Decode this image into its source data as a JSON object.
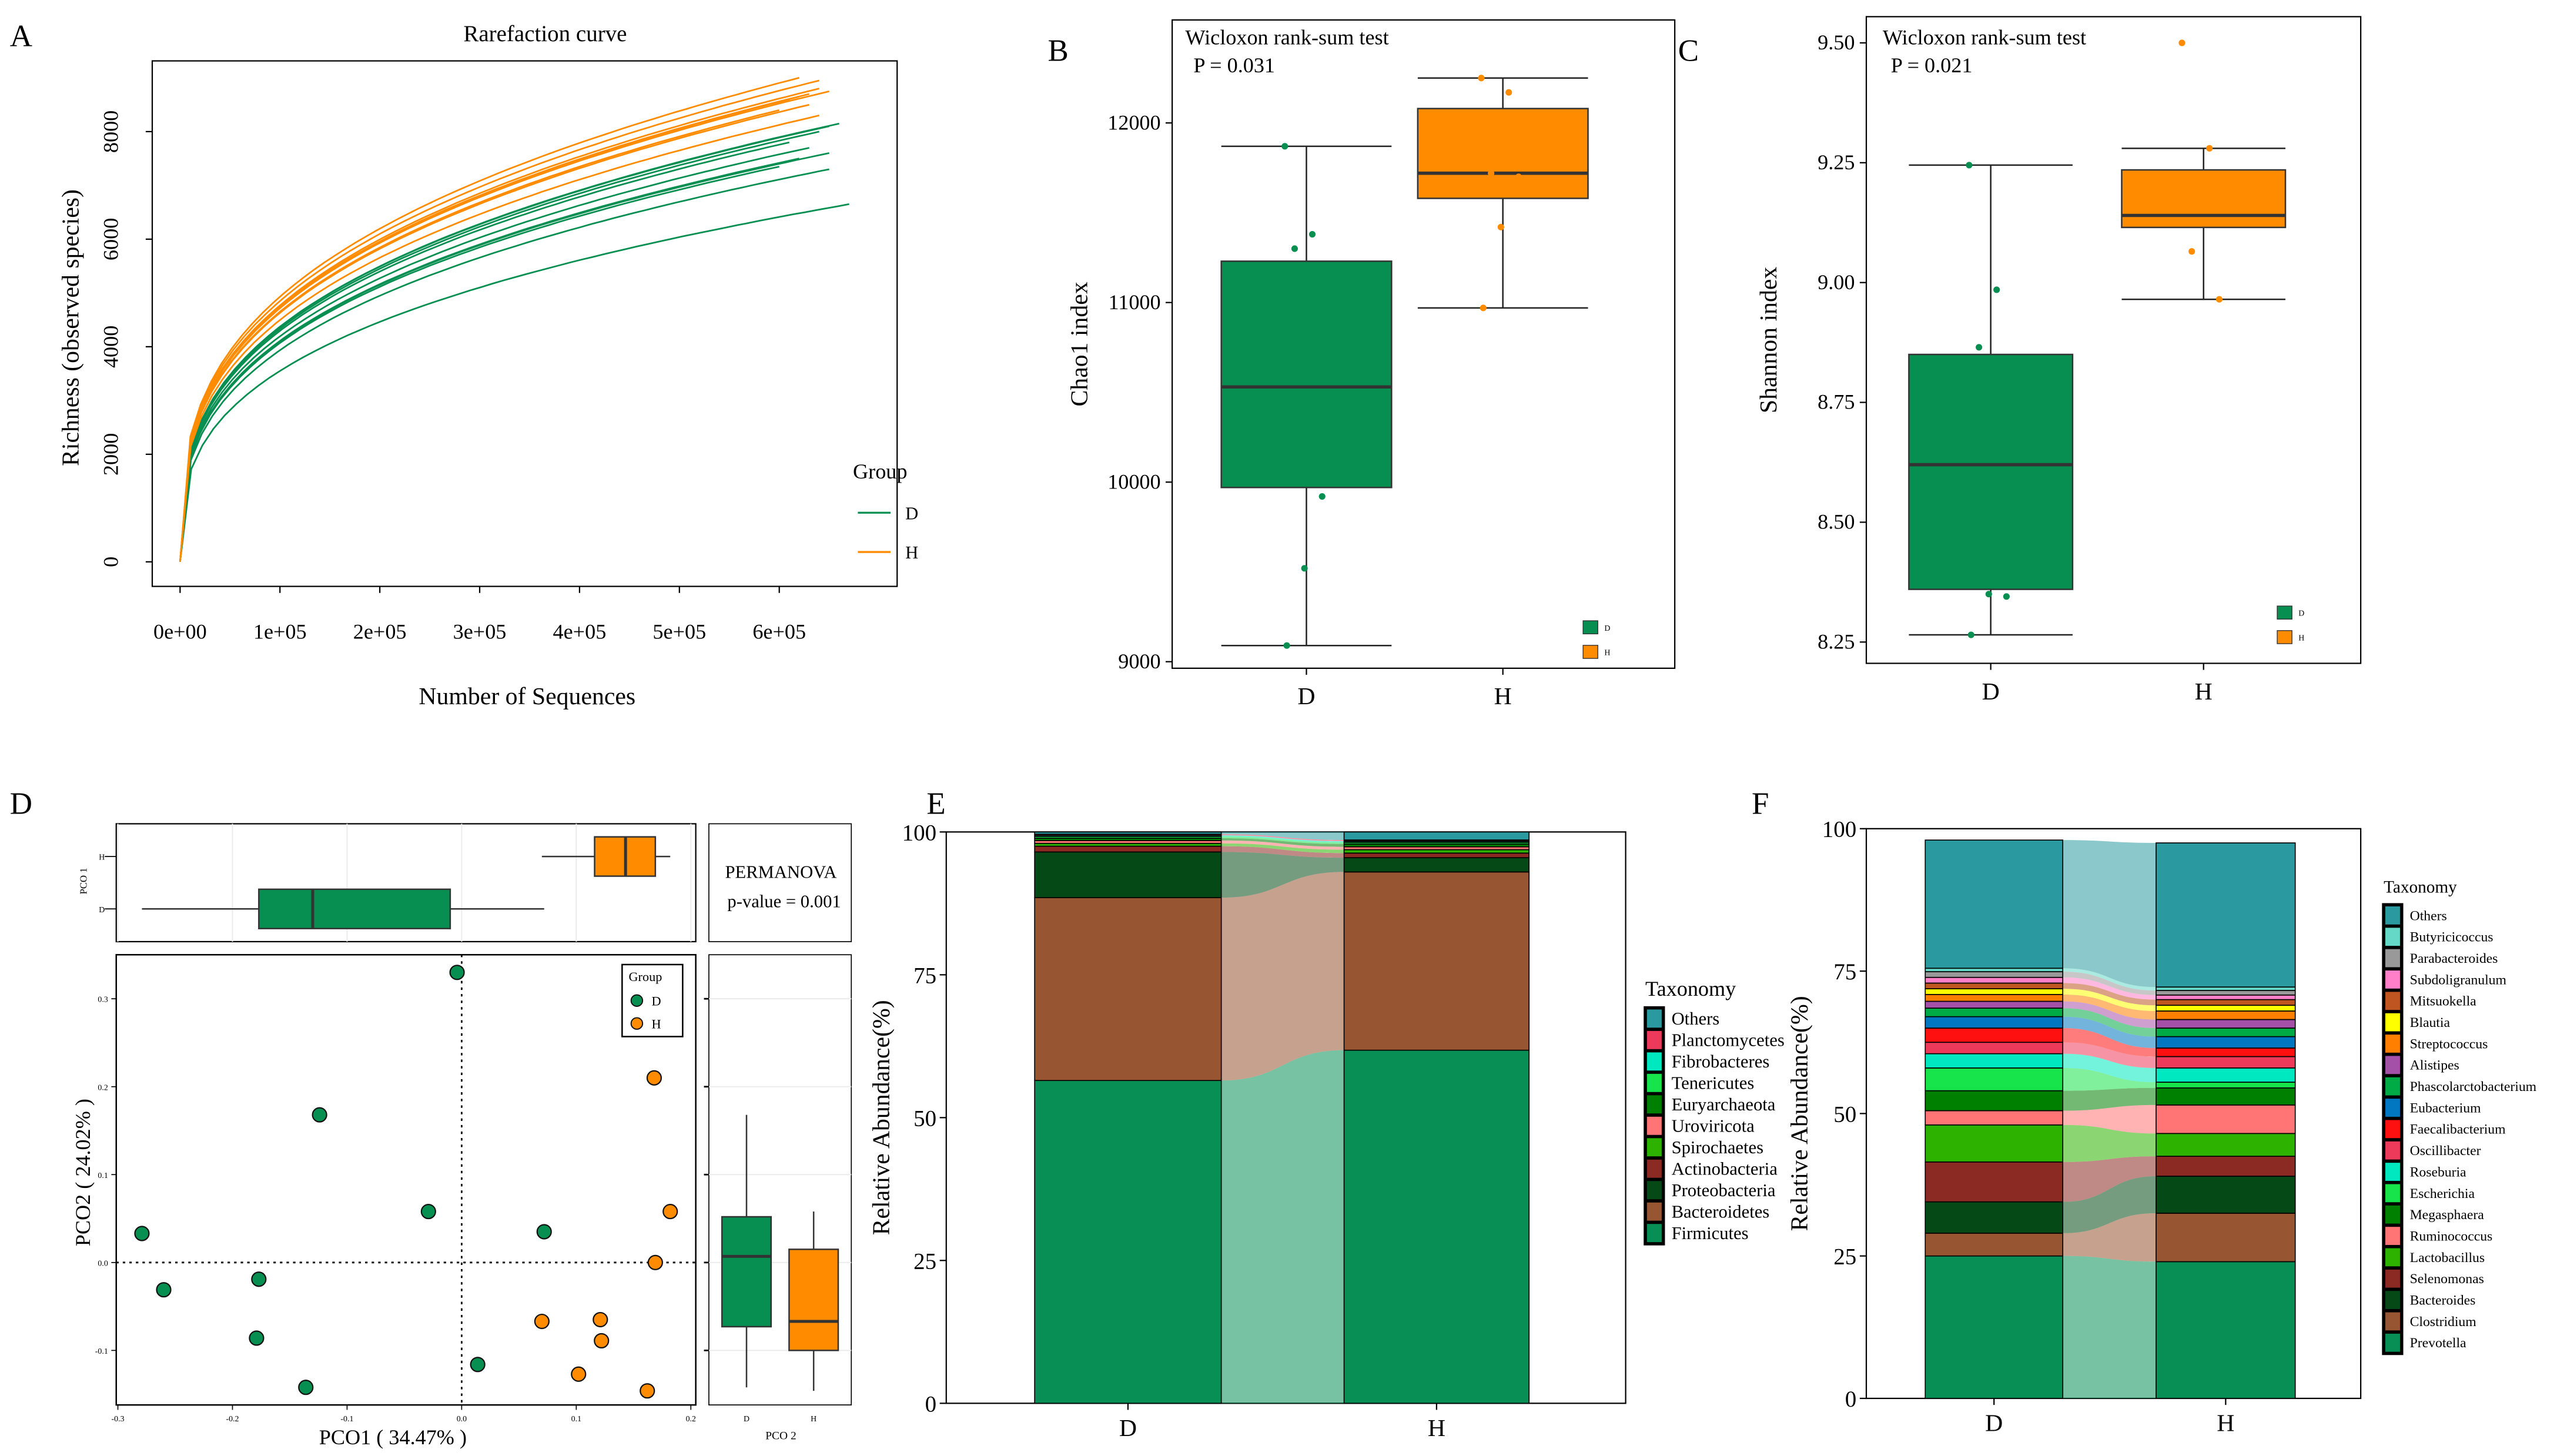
{
  "panel_labels": {
    "A": "A",
    "B": "B",
    "C": "C",
    "D": "D",
    "E": "E",
    "F": "F"
  },
  "colors": {
    "D": "#078F52",
    "H": "#FF8C00"
  },
  "chart_data": [
    {
      "id": "A",
      "type": "line",
      "title": "Rarefaction curve",
      "xlabel": "Number of Sequences",
      "ylabel": "Richness  (observed species)",
      "xticks": [
        0,
        100000,
        200000,
        300000,
        400000,
        500000,
        600000
      ],
      "xtick_labels": [
        "0e+00",
        "1e+05",
        "2e+05",
        "3e+05",
        "4e+05",
        "5e+05",
        "6e+05"
      ],
      "yticks": [
        0,
        2000,
        4000,
        6000,
        8000
      ],
      "yticks_text": [
        "0",
        "2000",
        "4000",
        "6000",
        "8000"
      ],
      "legend_title": "Group",
      "legend_placement": "right",
      "series": [
        {
          "name": "D",
          "endpoints": [
            [
              670000,
              6650
            ],
            [
              650000,
              7300
            ],
            [
              650000,
              7600
            ],
            [
              630000,
              7700
            ],
            [
              660000,
              8150
            ],
            [
              650000,
              8100
            ],
            [
              620000,
              7500
            ],
            [
              600000,
              7350
            ],
            [
              640000,
              8000
            ],
            [
              610000,
              7800
            ]
          ]
        },
        {
          "name": "H",
          "endpoints": [
            [
              640000,
              8950
            ],
            [
              620000,
              9000
            ],
            [
              640000,
              8800
            ],
            [
              630000,
              8700
            ],
            [
              650000,
              8750
            ],
            [
              610000,
              8600
            ],
            [
              630000,
              8500
            ],
            [
              600000,
              8400
            ],
            [
              640000,
              8300
            ],
            [
              620000,
              8650
            ]
          ]
        }
      ]
    },
    {
      "id": "B",
      "type": "box",
      "ylabel": "Chao1 index",
      "categories": [
        "D",
        "H"
      ],
      "test": "Wicloxon rank-sum test",
      "pvalue": "P  = 0.031",
      "yticks": [
        9000,
        10000,
        11000,
        12000
      ],
      "yticks_text": [
        "9000",
        "10000",
        "11000",
        "12000"
      ],
      "ylim": [
        8920,
        12550
      ],
      "boxes": [
        {
          "name": "D",
          "min": 9090,
          "q1": 9970,
          "median": 10530,
          "q3": 11230,
          "max": 11870,
          "points": [
            11870,
            11380,
            11300,
            9920,
            9520,
            9090
          ]
        },
        {
          "name": "H",
          "min": 10970,
          "q1": 11580,
          "median": 11720,
          "q3": 12080,
          "max": 12250,
          "points": [
            12250,
            12170,
            11720,
            11700,
            11420,
            10970
          ]
        }
      ],
      "legend": [
        "D",
        "H"
      ]
    },
    {
      "id": "C",
      "type": "box",
      "ylabel": "Shannon index",
      "categories": [
        "D",
        "H"
      ],
      "test": "Wicloxon rank-sum test",
      "pvalue": "P  = 0.021",
      "yticks": [
        8.25,
        8.5,
        8.75,
        9.0,
        9.25,
        9.5
      ],
      "yticks_text": [
        "8.25",
        "8.50",
        "8.75",
        "9.00",
        "9.25",
        "9.50"
      ],
      "boxes": [
        {
          "name": "D",
          "min": 8.265,
          "q1": 8.36,
          "median": 8.62,
          "q3": 8.85,
          "max": 9.245,
          "points": [
            9.245,
            8.985,
            8.865,
            8.345,
            8.35,
            8.265
          ]
        },
        {
          "name": "H",
          "min": 8.965,
          "q1": 9.115,
          "median": 9.14,
          "q3": 9.235,
          "max": 9.28,
          "points": [
            9.5,
            9.28,
            9.065,
            8.965
          ]
        }
      ],
      "legend": [
        "D",
        "H"
      ]
    },
    {
      "id": "D",
      "type": "scatter",
      "xlabel": "PCO1 ( 34.47% )",
      "ylabel": "PCO2 ( 24.02% )",
      "top_box_label": "PCO 1",
      "right_box_label": "PCO 2",
      "stat_title": "PERMANOVA",
      "stat_value": "p-value = 0.001",
      "legend_title": "Group",
      "legend_placement": "top-right",
      "xticks": [
        -0.3,
        -0.2,
        -0.1,
        0.0,
        0.1,
        0.2
      ],
      "xticks_text": [
        "-0.3",
        "-0.2",
        "-0.1",
        "0.0",
        "0.1",
        "0.2"
      ],
      "yticks": [
        -0.1,
        0.0,
        0.1,
        0.2,
        0.3
      ],
      "yticks_text": [
        "-0.1",
        "0.0",
        "0.1",
        "0.2",
        "0.3"
      ],
      "series": [
        {
          "name": "D",
          "points": [
            [
              -0.004,
              0.33
            ],
            [
              -0.124,
              0.168
            ],
            [
              -0.029,
              0.058
            ],
            [
              0.072,
              0.035
            ],
            [
              -0.279,
              0.033
            ],
            [
              -0.26,
              -0.031
            ],
            [
              -0.177,
              -0.019
            ],
            [
              -0.179,
              -0.086
            ],
            [
              0.014,
              -0.116
            ],
            [
              -0.136,
              -0.142
            ]
          ]
        },
        {
          "name": "H",
          "points": [
            [
              0.168,
              0.21
            ],
            [
              0.182,
              0.058
            ],
            [
              0.169,
              0.0
            ],
            [
              0.07,
              -0.067
            ],
            [
              0.121,
              -0.065
            ],
            [
              0.122,
              -0.089
            ],
            [
              0.102,
              -0.127
            ],
            [
              0.162,
              -0.146
            ]
          ]
        }
      ],
      "pco1_boxes": [
        {
          "name": "D",
          "min": -0.279,
          "q1": -0.177,
          "median": -0.13,
          "q3": -0.01,
          "max": 0.072
        },
        {
          "name": "H",
          "min": 0.07,
          "q1": 0.116,
          "median": 0.143,
          "q3": 0.169,
          "max": 0.182
        }
      ],
      "pco2_boxes": [
        {
          "name": "D",
          "min": -0.142,
          "q1": -0.073,
          "median": 0.007,
          "q3": 0.052,
          "max": 0.168
        },
        {
          "name": "H",
          "min": -0.146,
          "q1": -0.1,
          "median": -0.067,
          "q3": 0.015,
          "max": 0.058
        }
      ]
    },
    {
      "id": "E",
      "type": "bar",
      "stacked": true,
      "ylabel": "Relative Abundance(%)",
      "categories": [
        "D",
        "H"
      ],
      "yticks": [
        0,
        25,
        50,
        75,
        100
      ],
      "yticks_text": [
        "0",
        "25",
        "50",
        "75",
        "100"
      ],
      "ylim": [
        0,
        100
      ],
      "legend_title": "Taxonomy",
      "legend_placement": "right",
      "series": [
        {
          "name": "Firmicutes",
          "color": "#078F55",
          "values": [
            56.5,
            61.8
          ]
        },
        {
          "name": "Bacteroidetes",
          "color": "#985532",
          "values": [
            32.0,
            31.2
          ]
        },
        {
          "name": "Proteobacteria",
          "color": "#054A16",
          "values": [
            8.0,
            2.5
          ]
        },
        {
          "name": "Actinobacteria",
          "color": "#8B2A22",
          "values": [
            1.0,
            0.8
          ]
        },
        {
          "name": "Spirochaetes",
          "color": "#2DB200",
          "values": [
            0.5,
            0.6
          ]
        },
        {
          "name": "Uroviricota",
          "color": "#FF7575",
          "values": [
            0.5,
            0.5
          ]
        },
        {
          "name": "Euryarchaeota",
          "color": "#008000",
          "values": [
            0.4,
            0.5
          ]
        },
        {
          "name": "Tenericutes",
          "color": "#17E34B",
          "values": [
            0.3,
            0.3
          ]
        },
        {
          "name": "Fibrobacteres",
          "color": "#00E8C0",
          "values": [
            0.2,
            0.2
          ]
        },
        {
          "name": "Planctomycetes",
          "color": "#EE3A5A",
          "values": [
            0.2,
            0.2
          ]
        },
        {
          "name": "Others",
          "color": "#2A9AA0",
          "values": [
            0.4,
            1.4
          ]
        }
      ]
    },
    {
      "id": "F",
      "type": "bar",
      "stacked": true,
      "ylabel": "Relative Abundance(%)",
      "categories": [
        "D",
        "H"
      ],
      "yticks": [
        0,
        25,
        50,
        75,
        100
      ],
      "yticks_text": [
        "0",
        "25",
        "50",
        "75",
        "100"
      ],
      "ylim": [
        0,
        100
      ],
      "legend_title": "Taxonomy",
      "legend_placement": "right",
      "series": [
        {
          "name": "Prevotella",
          "color": "#078F55",
          "values": [
            25,
            24
          ]
        },
        {
          "name": "Clostridium",
          "color": "#985532",
          "values": [
            4,
            8.5
          ]
        },
        {
          "name": "Bacteroides",
          "color": "#054A16",
          "values": [
            5.5,
            6.5
          ]
        },
        {
          "name": "Selenomonas",
          "color": "#8B2A22",
          "values": [
            7,
            3.5
          ]
        },
        {
          "name": "Lactobacillus",
          "color": "#2DB200",
          "values": [
            6.5,
            4
          ]
        },
        {
          "name": "Ruminococcus",
          "color": "#FF7575",
          "values": [
            2.5,
            5
          ]
        },
        {
          "name": "Megasphaera",
          "color": "#008000",
          "values": [
            3.5,
            3
          ]
        },
        {
          "name": "Escherichia",
          "color": "#17E34B",
          "values": [
            4,
            1
          ]
        },
        {
          "name": "Roseburia",
          "color": "#00E8C0",
          "values": [
            2.5,
            2.5
          ]
        },
        {
          "name": "Oscillibacter",
          "color": "#EE3A5A",
          "values": [
            2,
            2
          ]
        },
        {
          "name": "Faecalibacterium",
          "color": "#FF1010",
          "values": [
            2.5,
            1.5
          ]
        },
        {
          "name": "Eubacterium",
          "color": "#0077C0",
          "values": [
            2,
            2
          ]
        },
        {
          "name": "Phascolarctobacterium",
          "color": "#00AA45",
          "values": [
            1.5,
            1.5
          ]
        },
        {
          "name": "Alistipes",
          "color": "#A550A8",
          "values": [
            1.2,
            1.5
          ]
        },
        {
          "name": "Streptococcus",
          "color": "#FF8000",
          "values": [
            1.2,
            1.5
          ]
        },
        {
          "name": "Blautia",
          "color": "#FFFF00",
          "values": [
            1,
            1
          ]
        },
        {
          "name": "Mitsuokella",
          "color": "#BF5520",
          "values": [
            1,
            1
          ]
        },
        {
          "name": "Subdoligranulum",
          "color": "#FF80C8",
          "values": [
            1,
            0.8
          ]
        },
        {
          "name": "Parabacteroides",
          "color": "#999999",
          "values": [
            1,
            0.8
          ]
        },
        {
          "name": "Butyricicoccus",
          "color": "#66D8C8",
          "values": [
            0.6,
            0.6
          ]
        },
        {
          "name": "Others",
          "color": "#2A9AA0",
          "values": [
            22.5,
            25.3
          ]
        }
      ]
    }
  ]
}
